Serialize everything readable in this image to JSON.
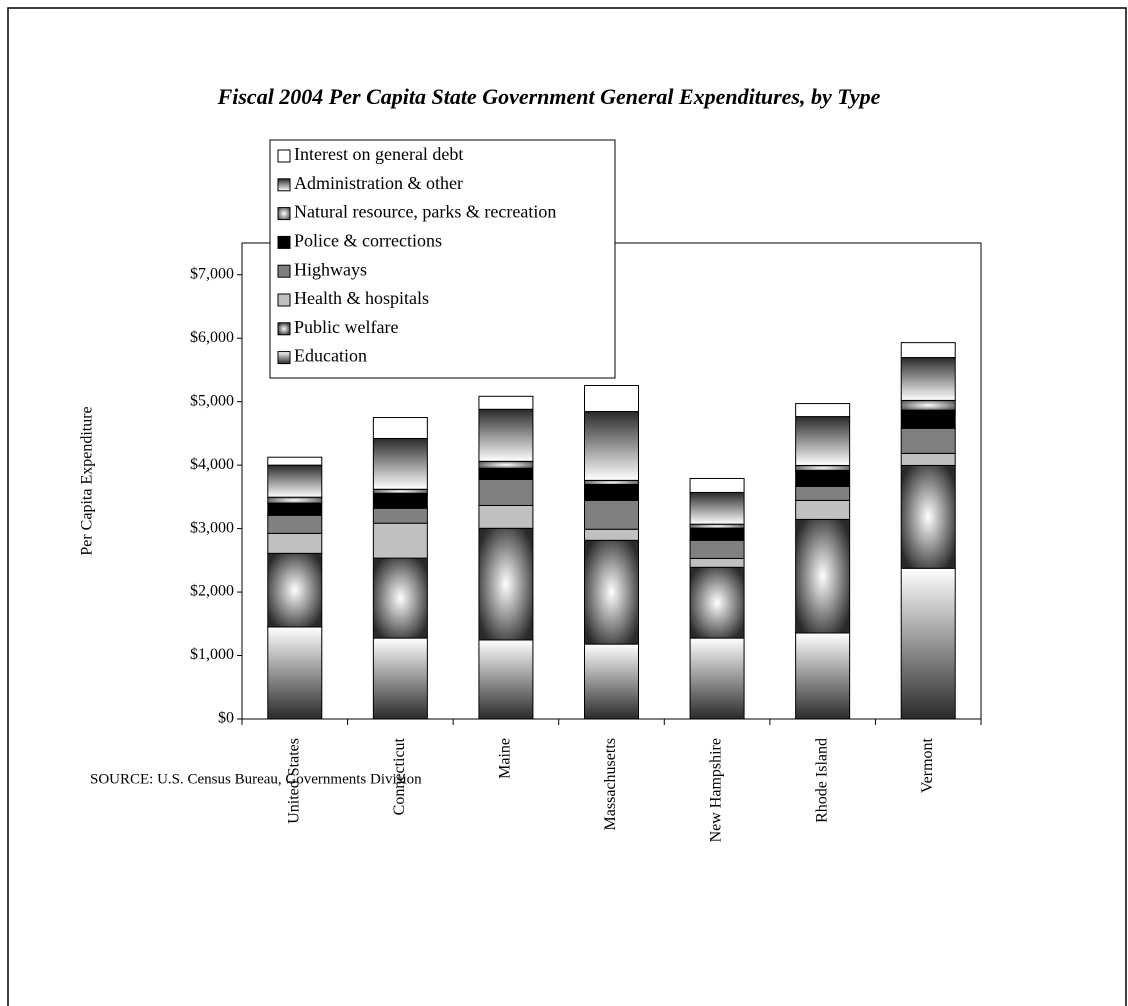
{
  "chart_data": {
    "type": "stacked-bar",
    "title": "Fiscal 2004 Per Capita State Government General Expenditures, by Type",
    "y_label": "Per Capita Expenditure",
    "source": "SOURCE:  U.S. Census Bureau, Governments Division",
    "categories": [
      "United States",
      "Connecticut",
      "Maine",
      "Massachusetts",
      "New Hampshire",
      "Rhode Island",
      "Vermont"
    ],
    "series": [
      {
        "name": "Education",
        "color": "#2a2a2a",
        "values": [
          1450,
          1275,
          1245,
          1180,
          1275,
          1355,
          2375
        ]
      },
      {
        "name": "Public welfare",
        "color": "#2a2a2a",
        "values": [
          1160,
          1260,
          1760,
          1635,
          1115,
          1790,
          1620
        ]
      },
      {
        "name": "Health & hospitals",
        "color": "#c0c0c0",
        "values": [
          315,
          550,
          360,
          175,
          140,
          300,
          190
        ]
      },
      {
        "name": "Highways",
        "color": "#808080",
        "values": [
          285,
          235,
          410,
          455,
          285,
          220,
          395
        ]
      },
      {
        "name": "Police & corrections",
        "color": "#000000",
        "values": [
          190,
          235,
          175,
          250,
          190,
          250,
          285
        ]
      },
      {
        "name": "Natural resource, parks & recreation",
        "color": "#555555",
        "values": [
          95,
          65,
          110,
          65,
          65,
          80,
          155
        ]
      },
      {
        "name": "Administration & other",
        "color": "#2a2a2a",
        "values": [
          505,
          800,
          820,
          1085,
          500,
          770,
          675
        ]
      },
      {
        "name": "Interest on general debt",
        "color": "#ffffff",
        "values": [
          125,
          330,
          205,
          410,
          220,
          205,
          235
        ]
      }
    ],
    "ylim": [
      0,
      7500
    ],
    "yticks": [
      {
        "value": 0,
        "label": "$0"
      },
      {
        "value": 1000,
        "label": "$1,000"
      },
      {
        "value": 2000,
        "label": "$2,000"
      },
      {
        "value": 3000,
        "label": "$3,000"
      },
      {
        "value": 4000,
        "label": "$4,000"
      },
      {
        "value": 5000,
        "label": "$5,000"
      },
      {
        "value": 6000,
        "label": "$6,000"
      },
      {
        "value": 7000,
        "label": "$7,000"
      }
    ],
    "grid": false,
    "legend": "top-left"
  }
}
